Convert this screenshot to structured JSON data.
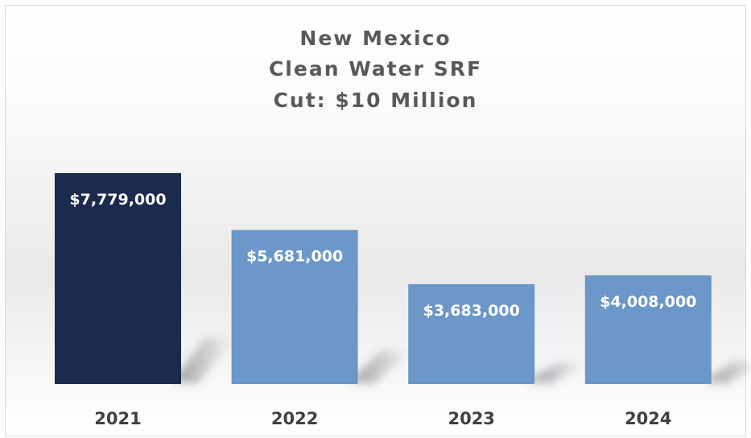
{
  "chart_data": {
    "type": "bar",
    "title_lines": [
      "New Mexico",
      "Clean Water SRF",
      "Cut: $10 Million"
    ],
    "categories": [
      "2021",
      "2022",
      "2023",
      "2024"
    ],
    "values": [
      7779000,
      5681000,
      3683000,
      4008000
    ],
    "data_labels": [
      "$7,779,000",
      "$5,681,000",
      "$3,683,000",
      "$4,008,000"
    ],
    "colors": [
      "#1b2a4e",
      "#6b97c9",
      "#6b97c9",
      "#6b97c9"
    ],
    "xlabel": "",
    "ylabel": "",
    "grid": false,
    "legend": "none"
  }
}
